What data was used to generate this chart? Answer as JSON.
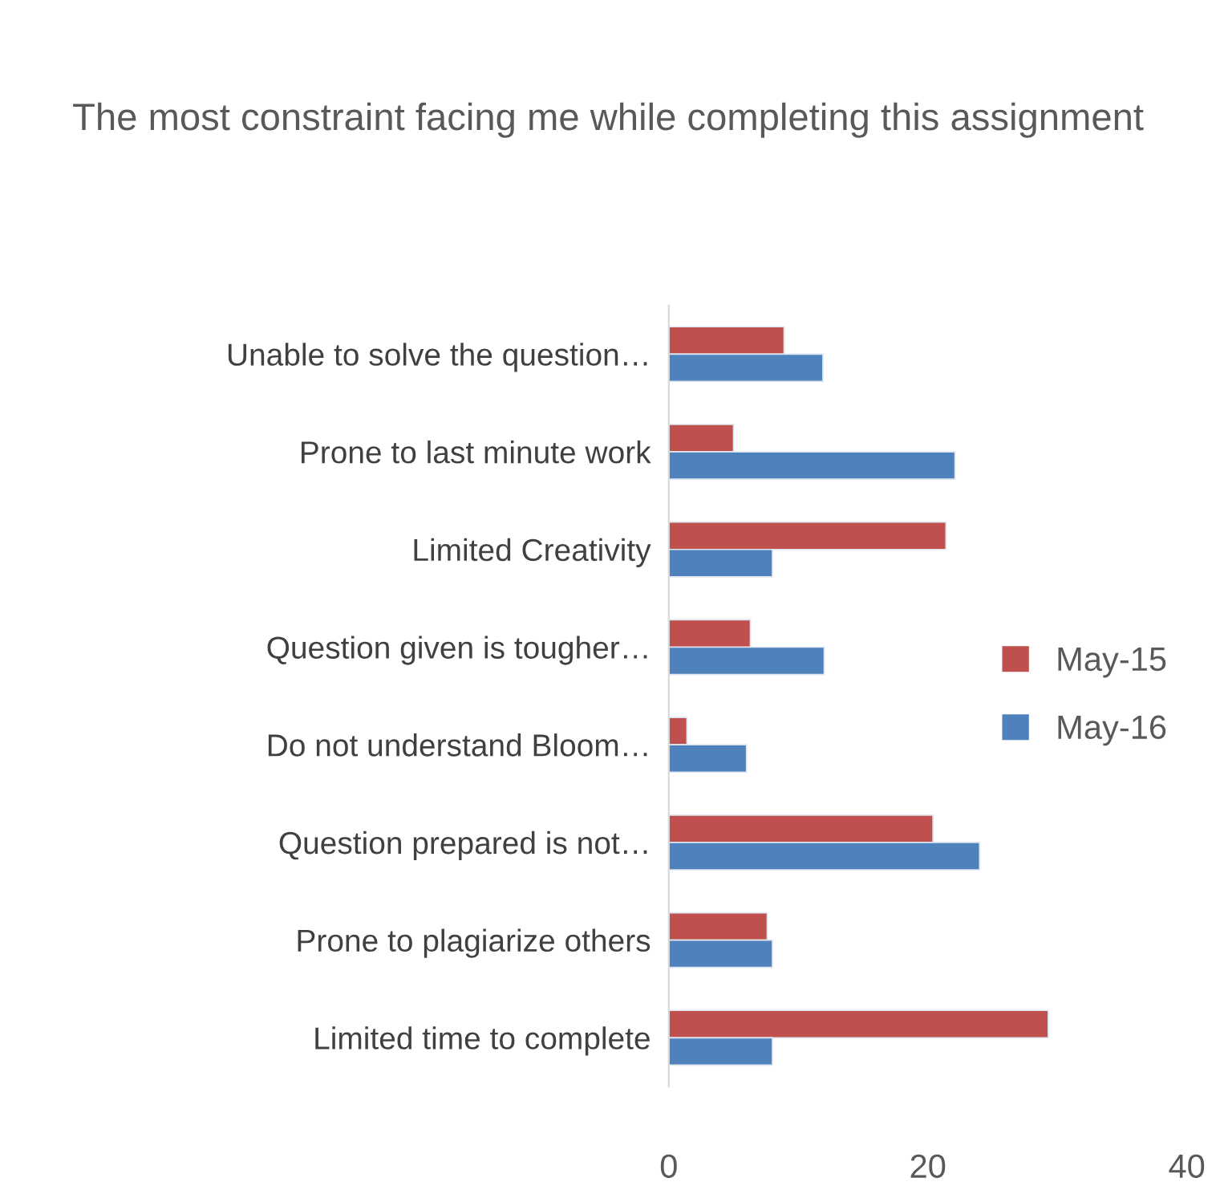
{
  "chart_data": {
    "type": "bar",
    "orientation": "horizontal",
    "title": "The most constraint facing me while completing this assignment",
    "categories": [
      "Unable to solve the question…",
      "Prone to last minute work",
      "Limited Creativity",
      "Question given is tougher…",
      "Do not understand Bloom…",
      "Question prepared is not…",
      "Prone to plagiarize others",
      "Limited time to complete"
    ],
    "series": [
      {
        "name": "May-15",
        "color": "#c0504d",
        "values": [
          8.9,
          5.0,
          21.4,
          6.3,
          1.4,
          20.4,
          7.6,
          29.3
        ]
      },
      {
        "name": "May-16",
        "color": "#4f81bd",
        "values": [
          11.9,
          22.1,
          8.0,
          12.0,
          6.0,
          24.0,
          8.0,
          8.0
        ]
      }
    ],
    "xlim": [
      0,
      40
    ],
    "xticks": [
      0,
      20,
      40
    ],
    "grid": false,
    "legend": "right"
  }
}
